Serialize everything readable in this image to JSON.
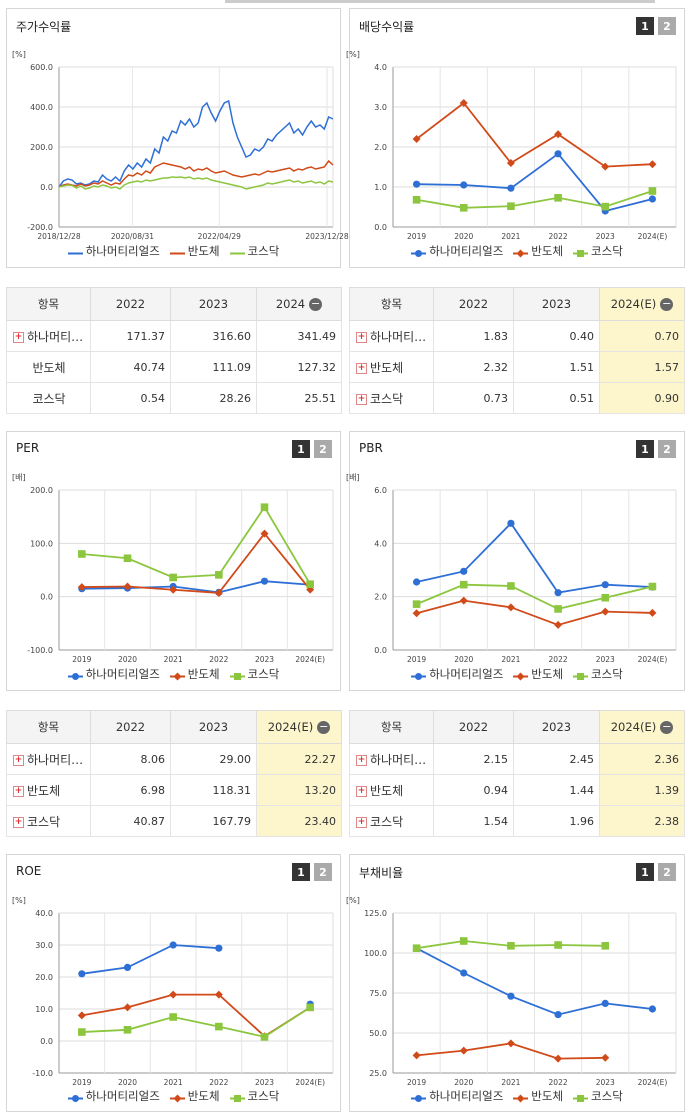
{
  "colors": {
    "s1": "#2e6fd6",
    "s2": "#d14a1a",
    "s3": "#8cc63e"
  },
  "series_names": [
    "하나머티리얼즈",
    "반도체",
    "코스닥"
  ],
  "btn1": "1",
  "btn2": "2",
  "chart_data": [
    {
      "id": "stock",
      "type": "line",
      "title": "주가수익률",
      "unit": "[%]",
      "ylim": [
        -200,
        600
      ],
      "yticks": [
        "600.0",
        "400.0",
        "200.0",
        "0.0",
        "-200.0"
      ],
      "x_ticks": [
        "2018/12/28",
        "2020/08/31",
        "2022/04/29",
        "2023/12/28"
      ],
      "series": [
        {
          "name": "하나머티리얼즈",
          "values": [
            0,
            30,
            40,
            35,
            15,
            20,
            10,
            15,
            30,
            25,
            60,
            40,
            30,
            50,
            30,
            80,
            110,
            90,
            120,
            100,
            140,
            120,
            190,
            170,
            250,
            230,
            280,
            270,
            330,
            310,
            340,
            300,
            320,
            400,
            420,
            370,
            330,
            380,
            420,
            430,
            320,
            250,
            200,
            150,
            160,
            190,
            180,
            200,
            240,
            230,
            260,
            280,
            300,
            320,
            270,
            290,
            260,
            300,
            330,
            300,
            310,
            290,
            350,
            340
          ]
        },
        {
          "name": "반도체",
          "values": [
            0,
            10,
            15,
            10,
            5,
            15,
            5,
            10,
            20,
            15,
            30,
            20,
            10,
            20,
            15,
            40,
            60,
            55,
            70,
            60,
            80,
            70,
            100,
            110,
            120,
            115,
            110,
            105,
            100,
            90,
            100,
            80,
            90,
            85,
            95,
            80,
            70,
            75,
            80,
            70,
            60,
            55,
            50,
            55,
            60,
            65,
            60,
            70,
            80,
            75,
            80,
            85,
            90,
            95,
            80,
            90,
            85,
            95,
            100,
            90,
            95,
            100,
            130,
            110
          ]
        },
        {
          "name": "코스닥",
          "values": [
            0,
            5,
            10,
            8,
            -5,
            5,
            -10,
            -5,
            5,
            0,
            10,
            5,
            -5,
            0,
            -10,
            10,
            20,
            25,
            30,
            25,
            35,
            30,
            35,
            40,
            45,
            45,
            50,
            48,
            50,
            45,
            50,
            40,
            45,
            40,
            45,
            35,
            30,
            25,
            20,
            15,
            10,
            5,
            0,
            -10,
            -5,
            0,
            5,
            10,
            20,
            15,
            20,
            25,
            30,
            35,
            25,
            30,
            20,
            25,
            30,
            20,
            25,
            15,
            30,
            25
          ]
        }
      ]
    },
    {
      "id": "dividend",
      "type": "line",
      "title": "배당수익률",
      "unit": "[%]",
      "ylim": [
        0,
        4
      ],
      "yticks": [
        "4.0",
        "3.0",
        "2.0",
        "1.0",
        "0.0"
      ],
      "categories": [
        "2019",
        "2020",
        "2021",
        "2022",
        "2023",
        "2024(E)"
      ],
      "series": [
        {
          "name": "하나머티리얼즈",
          "values": [
            1.07,
            1.05,
            0.97,
            1.83,
            0.4,
            0.7
          ]
        },
        {
          "name": "반도체",
          "values": [
            2.2,
            3.1,
            1.6,
            2.32,
            1.51,
            1.57
          ]
        },
        {
          "name": "코스닥",
          "values": [
            0.68,
            0.48,
            0.52,
            0.73,
            0.51,
            0.9
          ]
        }
      ]
    },
    {
      "id": "per",
      "type": "line",
      "title": "PER",
      "unit": "[배]",
      "ylim": [
        -100,
        200
      ],
      "yticks": [
        "200.0",
        "100.0",
        "0.0",
        "-100.0"
      ],
      "categories": [
        "2019",
        "2020",
        "2021",
        "2022",
        "2023",
        "2024(E)"
      ],
      "series": [
        {
          "name": "하나머티리얼즈",
          "values": [
            15,
            16,
            19,
            8.06,
            29.0,
            22.27
          ]
        },
        {
          "name": "반도체",
          "values": [
            18,
            19,
            13,
            6.98,
            118.31,
            13.2
          ]
        },
        {
          "name": "코스닥",
          "values": [
            80,
            72,
            36,
            40.87,
            167.79,
            23.4
          ]
        }
      ]
    },
    {
      "id": "pbr",
      "type": "line",
      "title": "PBR",
      "unit": "[배]",
      "ylim": [
        0,
        6
      ],
      "yticks": [
        "6.0",
        "4.0",
        "2.0",
        "0.0"
      ],
      "categories": [
        "2019",
        "2020",
        "2021",
        "2022",
        "2023",
        "2024(E)"
      ],
      "series": [
        {
          "name": "하나머티리얼즈",
          "values": [
            2.55,
            2.95,
            4.75,
            2.15,
            2.45,
            2.36
          ]
        },
        {
          "name": "반도체",
          "values": [
            1.38,
            1.85,
            1.6,
            0.94,
            1.44,
            1.39
          ]
        },
        {
          "name": "코스닥",
          "values": [
            1.72,
            2.45,
            2.4,
            1.54,
            1.96,
            2.38
          ]
        }
      ]
    },
    {
      "id": "roe",
      "type": "line",
      "title": "ROE",
      "unit": "[%]",
      "ylim": [
        -10,
        40
      ],
      "yticks": [
        "40.0",
        "30.0",
        "20.0",
        "10.0",
        "0.0",
        "-10.0"
      ],
      "categories": [
        "2019",
        "2020",
        "2021",
        "2022",
        "2023",
        "2024(E)"
      ],
      "series": [
        {
          "name": "하나머티리얼즈",
          "values": [
            21,
            23,
            30,
            29,
            null,
            11.5
          ]
        },
        {
          "name": "반도체",
          "values": [
            8,
            10.5,
            14.5,
            14.5,
            1.5,
            10.5
          ]
        },
        {
          "name": "코스닥",
          "values": [
            2.8,
            3.5,
            7.5,
            4.5,
            1.3,
            10.5
          ]
        }
      ]
    },
    {
      "id": "debt",
      "type": "line",
      "title": "부채비율",
      "unit": "[%]",
      "ylim": [
        25,
        125
      ],
      "yticks": [
        "125.0",
        "100.0",
        "75.0",
        "50.0",
        "25.0"
      ],
      "categories": [
        "2019",
        "2020",
        "2021",
        "2022",
        "2023",
        "2024(E)"
      ],
      "series": [
        {
          "name": "하나머티리얼즈",
          "values": [
            103,
            87.5,
            73,
            61.5,
            68.5,
            65
          ]
        },
        {
          "name": "반도체",
          "values": [
            36,
            39,
            43.5,
            34,
            34.5,
            null
          ]
        },
        {
          "name": "코스닥",
          "values": [
            103,
            107.5,
            104.5,
            105,
            104.5,
            null
          ]
        }
      ]
    }
  ],
  "tables": [
    {
      "id": "t_stock",
      "header": [
        "항목",
        "2022",
        "2023",
        "2024"
      ],
      "minus": "−",
      "hl": false,
      "rows": [
        {
          "label": "하나머티…",
          "plus": true,
          "vals": [
            "171.37",
            "316.60",
            "341.49"
          ]
        },
        {
          "label": "반도체",
          "plus": false,
          "vals": [
            "40.74",
            "111.09",
            "127.32"
          ]
        },
        {
          "label": "코스닥",
          "plus": false,
          "vals": [
            "0.54",
            "28.26",
            "25.51"
          ]
        }
      ]
    },
    {
      "id": "t_div",
      "header": [
        "항목",
        "2022",
        "2023",
        "2024(E)"
      ],
      "minus": "−",
      "hl": true,
      "rows": [
        {
          "label": "하나머티…",
          "plus": true,
          "vals": [
            "1.83",
            "0.40",
            "0.70"
          ]
        },
        {
          "label": "반도체",
          "plus": true,
          "vals": [
            "2.32",
            "1.51",
            "1.57"
          ]
        },
        {
          "label": "코스닥",
          "plus": true,
          "vals": [
            "0.73",
            "0.51",
            "0.90"
          ]
        }
      ]
    },
    {
      "id": "t_per",
      "header": [
        "항목",
        "2022",
        "2023",
        "2024(E)"
      ],
      "minus": "−",
      "hl": true,
      "rows": [
        {
          "label": "하나머티…",
          "plus": true,
          "vals": [
            "8.06",
            "29.00",
            "22.27"
          ]
        },
        {
          "label": "반도체",
          "plus": true,
          "vals": [
            "6.98",
            "118.31",
            "13.20"
          ]
        },
        {
          "label": "코스닥",
          "plus": true,
          "vals": [
            "40.87",
            "167.79",
            "23.40"
          ]
        }
      ]
    },
    {
      "id": "t_pbr",
      "header": [
        "항목",
        "2022",
        "2023",
        "2024(E)"
      ],
      "minus": "−",
      "hl": true,
      "rows": [
        {
          "label": "하나머티…",
          "plus": true,
          "vals": [
            "2.15",
            "2.45",
            "2.36"
          ]
        },
        {
          "label": "반도체",
          "plus": true,
          "vals": [
            "0.94",
            "1.44",
            "1.39"
          ]
        },
        {
          "label": "코스닥",
          "plus": true,
          "vals": [
            "1.54",
            "1.96",
            "2.38"
          ]
        }
      ]
    }
  ]
}
